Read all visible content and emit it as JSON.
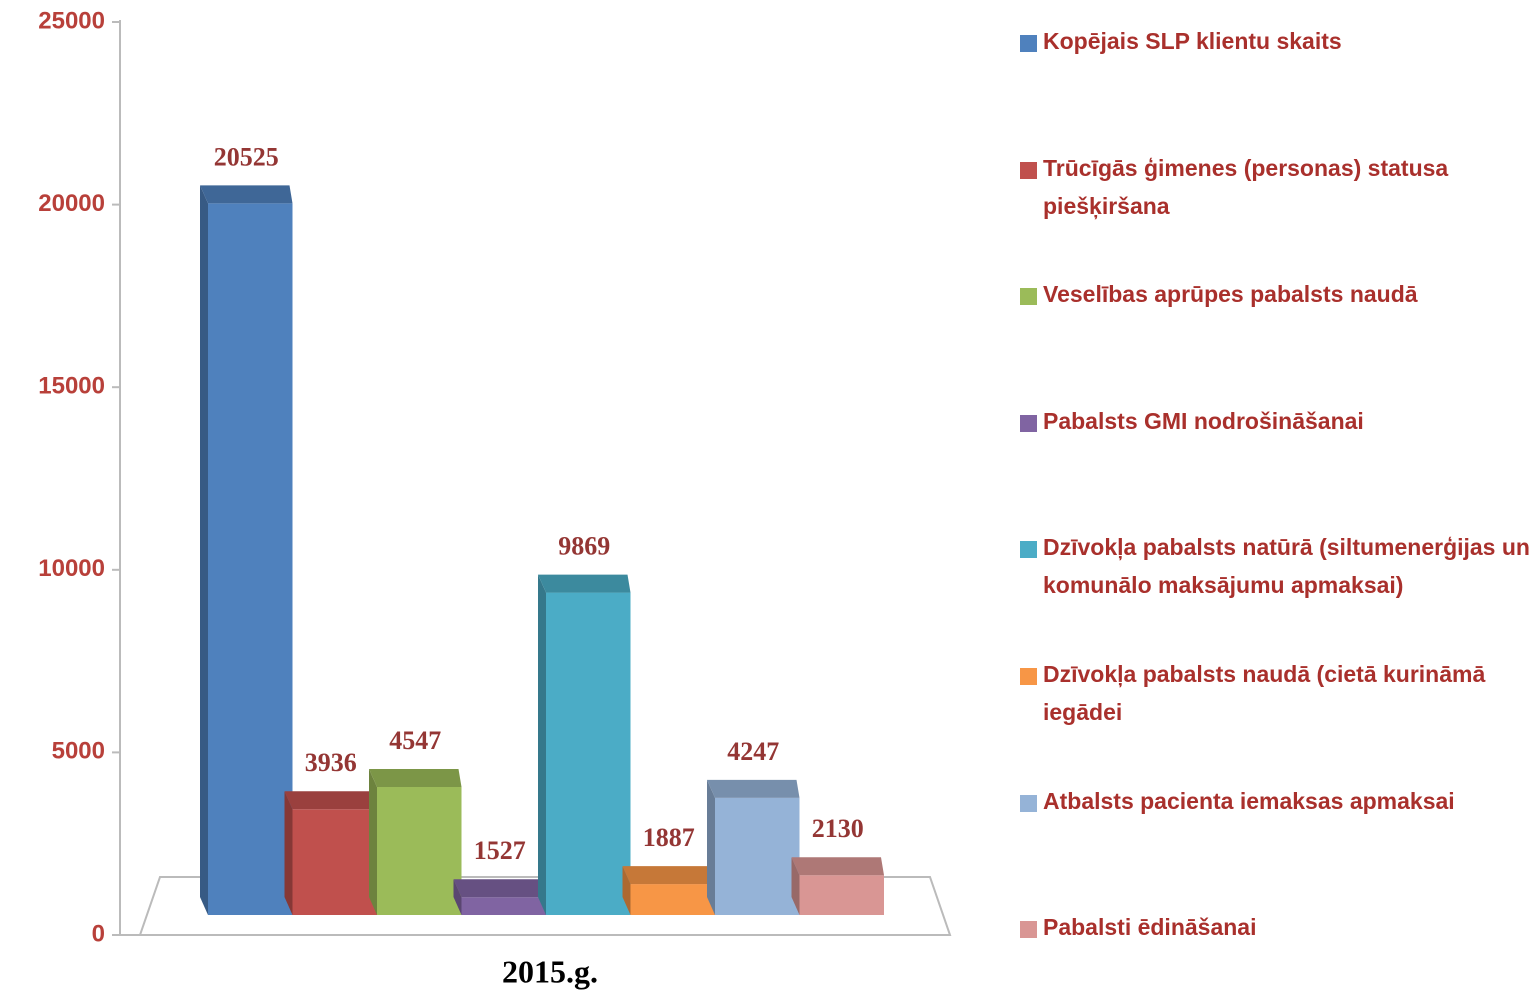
{
  "chart_data": {
    "type": "bar",
    "categories": [
      "2015.g."
    ],
    "ylim": [
      0,
      25000
    ],
    "yticks": [
      0,
      5000,
      10000,
      15000,
      20000,
      25000
    ],
    "series": [
      {
        "name": "Kopējais SLP klientu skaits",
        "color": "#4f81bd",
        "values": [
          20525
        ]
      },
      {
        "name": "Trūcīgās ģimenes (personas) statusa piešķiršana",
        "color": "#c0504d",
        "values": [
          3936
        ]
      },
      {
        "name": "Veselības aprūpes pabalsts naudā",
        "color": "#9bbb59",
        "values": [
          4547
        ]
      },
      {
        "name": "Pabalsts GMI nodrošināšanai",
        "color": "#8064a2",
        "values": [
          1527
        ]
      },
      {
        "name": "Dzīvokļa pabalsts natūrā (siltumenerģijas un komunālo maksājumu apmaksai)",
        "color": "#4bacc6",
        "values": [
          9869
        ]
      },
      {
        "name": "Dzīvokļa pabalsts naudā (cietā kurināmā iegādei",
        "color": "#f79646",
        "values": [
          1887
        ]
      },
      {
        "name": "Atbalsts pacienta iemaksas apmaksai",
        "color": "#95b3d7",
        "values": [
          4247
        ]
      },
      {
        "name": "Pabalsti ēdināšanai",
        "color": "#d99694",
        "values": [
          2130
        ]
      }
    ]
  }
}
